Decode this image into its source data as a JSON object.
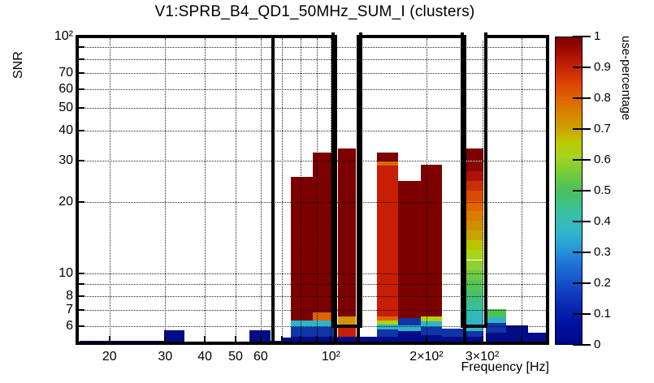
{
  "title": "V1:SPRB_B4_QD1_50MHz_SUM_I (clusters)",
  "axes": {
    "x": {
      "label": "Frequency [Hz]",
      "scale": "log",
      "min_hz": 16.1,
      "max_hz": 488,
      "ticks": [
        {
          "v": 20,
          "l": "20"
        },
        {
          "v": 30,
          "l": "30"
        },
        {
          "v": 40,
          "l": "40"
        },
        {
          "v": 50,
          "l": "50"
        },
        {
          "v": 60,
          "l": "60"
        },
        {
          "v": 70,
          "l": ""
        },
        {
          "v": 80,
          "l": ""
        },
        {
          "v": 90,
          "l": ""
        },
        {
          "v": 100,
          "l": "10²"
        },
        {
          "v": 200,
          "l": "2×10²"
        },
        {
          "v": 300,
          "l": "3×10²"
        },
        {
          "v": 400,
          "l": ""
        }
      ]
    },
    "y": {
      "label": "SNR",
      "scale": "log",
      "min_snr": 5,
      "max_snr": 100,
      "ticks": [
        {
          "v": 6,
          "l": "6"
        },
        {
          "v": 7,
          "l": "7"
        },
        {
          "v": 8,
          "l": "8"
        },
        {
          "v": 9,
          "l": ""
        },
        {
          "v": 10,
          "l": "10"
        },
        {
          "v": 20,
          "l": "20"
        },
        {
          "v": 30,
          "l": "30"
        },
        {
          "v": 40,
          "l": "40"
        },
        {
          "v": 50,
          "l": "50"
        },
        {
          "v": 60,
          "l": "60"
        },
        {
          "v": 70,
          "l": "70"
        },
        {
          "v": 80,
          "l": ""
        },
        {
          "v": 90,
          "l": ""
        },
        {
          "v": 100,
          "l": "10²"
        }
      ]
    },
    "z": {
      "label": "use-percentage",
      "min": 0,
      "max": 1,
      "ticks": [
        {
          "v": 0,
          "l": "0"
        },
        {
          "v": 0.1,
          "l": "0.1"
        },
        {
          "v": 0.2,
          "l": "0.2"
        },
        {
          "v": 0.3,
          "l": "0.3"
        },
        {
          "v": 0.4,
          "l": "0.4"
        },
        {
          "v": 0.5,
          "l": "0.5"
        },
        {
          "v": 0.6,
          "l": "0.6"
        },
        {
          "v": 0.7,
          "l": "0.7"
        },
        {
          "v": 0.8,
          "l": "0.8"
        },
        {
          "v": 0.9,
          "l": "0.9"
        },
        {
          "v": 1,
          "l": "1"
        }
      ]
    }
  },
  "colorbar_stops": [
    {
      "p": 0,
      "c": "#000887"
    },
    {
      "p": 6,
      "c": "#000f9e"
    },
    {
      "p": 13,
      "c": "#0a2ab5"
    },
    {
      "p": 20,
      "c": "#1550cc"
    },
    {
      "p": 27,
      "c": "#2078d8"
    },
    {
      "p": 32,
      "c": "#2a9fd6"
    },
    {
      "p": 37,
      "c": "#31b7c8"
    },
    {
      "p": 43,
      "c": "#3ac0a2"
    },
    {
      "p": 50,
      "c": "#4ac05c"
    },
    {
      "p": 56,
      "c": "#78cc3a"
    },
    {
      "p": 61,
      "c": "#a4d41e"
    },
    {
      "p": 66,
      "c": "#c0c800"
    },
    {
      "p": 70,
      "c": "#cda300"
    },
    {
      "p": 75,
      "c": "#d88500"
    },
    {
      "p": 80,
      "c": "#df6300"
    },
    {
      "p": 85,
      "c": "#dc4405"
    },
    {
      "p": 90,
      "c": "#c92505"
    },
    {
      "p": 95,
      "c": "#a30d00"
    },
    {
      "p": 100,
      "c": "#7c0000"
    }
  ],
  "chart_data": {
    "type": "heatmap",
    "title": "V1:SPRB_B4_QD1_50MHz_SUM_I (clusters)",
    "xlabel": "Frequency [Hz]",
    "ylabel": "SNR",
    "zlabel": "use-percentage",
    "x_axis": {
      "scale": "log",
      "range_hz": [
        16.1,
        488
      ]
    },
    "y_axis": {
      "scale": "log",
      "range_snr": [
        5,
        100
      ]
    },
    "z_axis": {
      "range": [
        0,
        1
      ]
    },
    "grid": true,
    "columns": [
      {
        "f": [
          16.1,
          29.7
        ],
        "cells": [
          [
            5.2,
            5,
            0.05,
            "#000d87"
          ]
        ]
      },
      {
        "f": [
          29.7,
          34.5
        ],
        "cells": [
          [
            5.77,
            5,
            0.05,
            "#000d87"
          ]
        ]
      },
      {
        "f": [
          55.2,
          64.4
        ],
        "cells": [
          [
            5.77,
            5,
            0.05,
            "#000d87"
          ]
        ]
      },
      {
        "f": [
          64.4,
          69.9
        ],
        "cells": [
          [
            5.19,
            5,
            0.05,
            "#000d87"
          ]
        ]
      },
      {
        "f": [
          69.9,
          74.6
        ],
        "cells": [
          [
            5.36,
            5,
            0.05,
            "#000d87"
          ]
        ]
      },
      {
        "f": [
          74.6,
          87.5
        ],
        "cells": [
          [
            25.5,
            6.35,
            1.0,
            "#7c0000"
          ],
          [
            6.35,
            5.96,
            0.35,
            "#2fb3cb"
          ],
          [
            5.96,
            5.4,
            0.15,
            "#1134a6"
          ],
          [
            5.4,
            5,
            0.05,
            "#000d87"
          ]
        ]
      },
      {
        "f": [
          87.5,
          102.6
        ],
        "cells": [
          [
            32.3,
            6.86,
            1.0,
            "#7c0000"
          ],
          [
            6.86,
            6.35,
            0.8,
            "#df6400"
          ],
          [
            6.35,
            5.96,
            0.35,
            "#2fb3cb"
          ],
          [
            5.96,
            5.4,
            0.15,
            "#1134a6"
          ],
          [
            5.4,
            5,
            0.05,
            "#000d87"
          ]
        ]
      },
      {
        "f": [
          102.6,
          105
        ],
        "cells": [
          [
            5.4,
            5,
            0.05,
            "#000d87"
          ]
        ]
      },
      {
        "f": [
          105,
          119.5
        ],
        "cells": [
          [
            33.6,
            6.6,
            1.0,
            "#7c0000"
          ],
          [
            6.6,
            6.1,
            0.72,
            "#cf9400"
          ],
          [
            6.1,
            5.4,
            0.9,
            "#c81e05"
          ],
          [
            5.4,
            5,
            0.05,
            "#000d87"
          ]
        ]
      },
      {
        "f": [
          119.5,
          140
        ],
        "cells": [
          [
            5.4,
            5,
            0.05,
            "#000d87"
          ]
        ]
      },
      {
        "f": [
          140,
          162.6
        ],
        "cells": [
          [
            32.3,
            29.7,
            1.0,
            "#7c0000"
          ],
          [
            29.7,
            28.5,
            0.8,
            "#df6400"
          ],
          [
            28.5,
            6.6,
            0.9,
            "#c81e05"
          ],
          [
            6.6,
            6.35,
            0.8,
            "#df6400"
          ],
          [
            6.35,
            6.1,
            0.6,
            "#b0d400"
          ],
          [
            6.1,
            5.82,
            0.35,
            "#2fb3cb"
          ],
          [
            5.82,
            5.4,
            0.15,
            "#1134a6"
          ],
          [
            5.4,
            5,
            0.05,
            "#000d87"
          ]
        ]
      },
      {
        "f": [
          162.6,
          191.8
        ],
        "cells": [
          [
            24.6,
            6.5,
            1.0,
            "#7c0000"
          ],
          [
            6.5,
            6.06,
            0.15,
            "#1134a6"
          ],
          [
            6.06,
            5.72,
            0.35,
            "#2fb3cb"
          ],
          [
            5.72,
            5,
            0.05,
            "#000d87"
          ]
        ]
      },
      {
        "f": [
          191.8,
          223.3
        ],
        "cells": [
          [
            28.8,
            6.6,
            1.0,
            "#7c0000"
          ],
          [
            6.6,
            6.3,
            0.6,
            "#b0d400"
          ],
          [
            6.3,
            5.96,
            0.35,
            "#2fb3cb"
          ],
          [
            5.96,
            5.5,
            0.15,
            "#1134a6"
          ],
          [
            5.5,
            5,
            0.05,
            "#000d87"
          ]
        ]
      },
      {
        "f": [
          223.3,
          260.7
        ],
        "cells": [
          [
            5.87,
            5.4,
            0.15,
            "#1134a6"
          ],
          [
            5.4,
            5,
            0.05,
            "#000d87"
          ]
        ]
      },
      {
        "f": [
          265.4,
          302.7
        ],
        "cells": [
          [
            33.6,
            29.8,
            1.0,
            "#7c0000"
          ],
          [
            29.8,
            27,
            0.97,
            "#8d0500"
          ],
          [
            27,
            24.5,
            0.93,
            "#ad1205"
          ],
          [
            24.5,
            22.3,
            0.9,
            "#c92e05"
          ],
          [
            22.3,
            20.2,
            0.87,
            "#da4a05"
          ],
          [
            20.2,
            18.4,
            0.83,
            "#e06400"
          ],
          [
            18.4,
            16.7,
            0.79,
            "#da7b00"
          ],
          [
            16.7,
            15.2,
            0.75,
            "#d08f00"
          ],
          [
            15.2,
            13.8,
            0.71,
            "#c5a300"
          ],
          [
            13.8,
            12.6,
            0.67,
            "#bcc400"
          ],
          [
            12.6,
            11.4,
            0.63,
            "#a8d41c"
          ],
          [
            11.4,
            10.3,
            0.59,
            "#8ed02e"
          ],
          [
            10.3,
            9.4,
            0.55,
            "#6fc944"
          ],
          [
            9.4,
            8.5,
            0.51,
            "#54c452"
          ],
          [
            8.5,
            7.8,
            0.47,
            "#46c16e"
          ],
          [
            7.8,
            7.0,
            0.43,
            "#3bbf92"
          ],
          [
            7.0,
            6.4,
            0.39,
            "#33b9b4"
          ],
          [
            6.4,
            6.1,
            0.35,
            "#2fb3cb"
          ],
          [
            6.1,
            5.72,
            0.35,
            "#2fb3cb"
          ],
          [
            5.72,
            5.4,
            0.15,
            "#1134a6"
          ],
          [
            5.4,
            5,
            0.05,
            "#000d87"
          ]
        ]
      },
      {
        "f": [
          307.9,
          356.5
        ],
        "cells": [
          [
            7.08,
            6.55,
            0.5,
            "#4cc24e"
          ],
          [
            6.55,
            6.2,
            0.35,
            "#2fb3cb"
          ],
          [
            6.2,
            5.63,
            0.15,
            "#1134a6"
          ],
          [
            5.63,
            5,
            0.05,
            "#000d87"
          ]
        ]
      },
      {
        "f": [
          356.5,
          417.5
        ],
        "cells": [
          [
            6.06,
            5,
            0.05,
            "#000d87"
          ]
        ]
      },
      {
        "f": [
          417.5,
          488
        ],
        "cells": [
          [
            5.63,
            5,
            0.05,
            "#000d87"
          ]
        ]
      }
    ],
    "clusters": [
      {
        "f": [
          65.5,
          103.2
        ],
        "snr": [
          5,
          100
        ],
        "open_top": false
      },
      {
        "f": [
          101.5,
          124.0
        ],
        "snr": [
          6.1,
          100
        ],
        "open_top": true
      },
      {
        "f": [
          122.2,
          263.6
        ],
        "snr": [
          5,
          100
        ],
        "open_top": false
      },
      {
        "f": [
          258.7,
          308.5
        ],
        "snr": [
          6.1,
          100
        ],
        "open_top": true
      }
    ]
  }
}
